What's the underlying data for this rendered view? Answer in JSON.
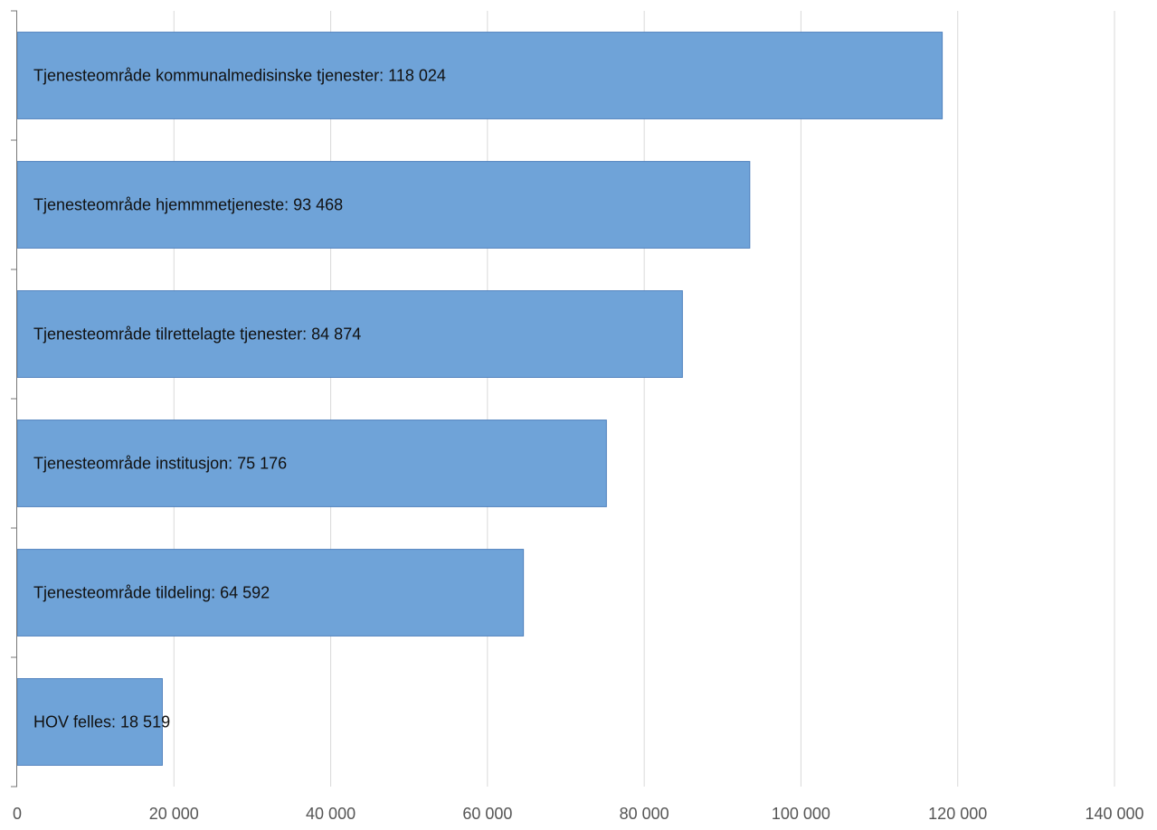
{
  "chart_data": {
    "type": "bar",
    "orientation": "horizontal",
    "title": "",
    "xlabel": "",
    "ylabel": "",
    "xlim": [
      0,
      140000
    ],
    "grid": true,
    "legend": "none",
    "bar_color": "#6fa3d8",
    "bar_border_color": "#4f81bd",
    "grid_color": "#d9d9d9",
    "axis_color": "#777777",
    "x_ticks": [
      0,
      20000,
      40000,
      60000,
      80000,
      100000,
      120000,
      140000
    ],
    "x_tick_labels": [
      "0",
      "20 000",
      "40 000",
      "60 000",
      "80 000",
      "100 000",
      "120 000",
      "140 000"
    ],
    "bars": [
      {
        "label": "Tjenesteområde kommunalmedisinske tjenester: 118 024",
        "value": 118024
      },
      {
        "label": "Tjenesteområde hjemmmetjeneste: 93 468",
        "value": 93468
      },
      {
        "label": "Tjenesteområde tilrettelagte tjenester: 84 874",
        "value": 84874
      },
      {
        "label": "Tjenesteområde institusjon: 75 176",
        "value": 75176
      },
      {
        "label": "Tjenesteområde tildeling: 64 592",
        "value": 64592
      },
      {
        "label": "HOV felles: 18 519",
        "value": 18519
      }
    ]
  }
}
